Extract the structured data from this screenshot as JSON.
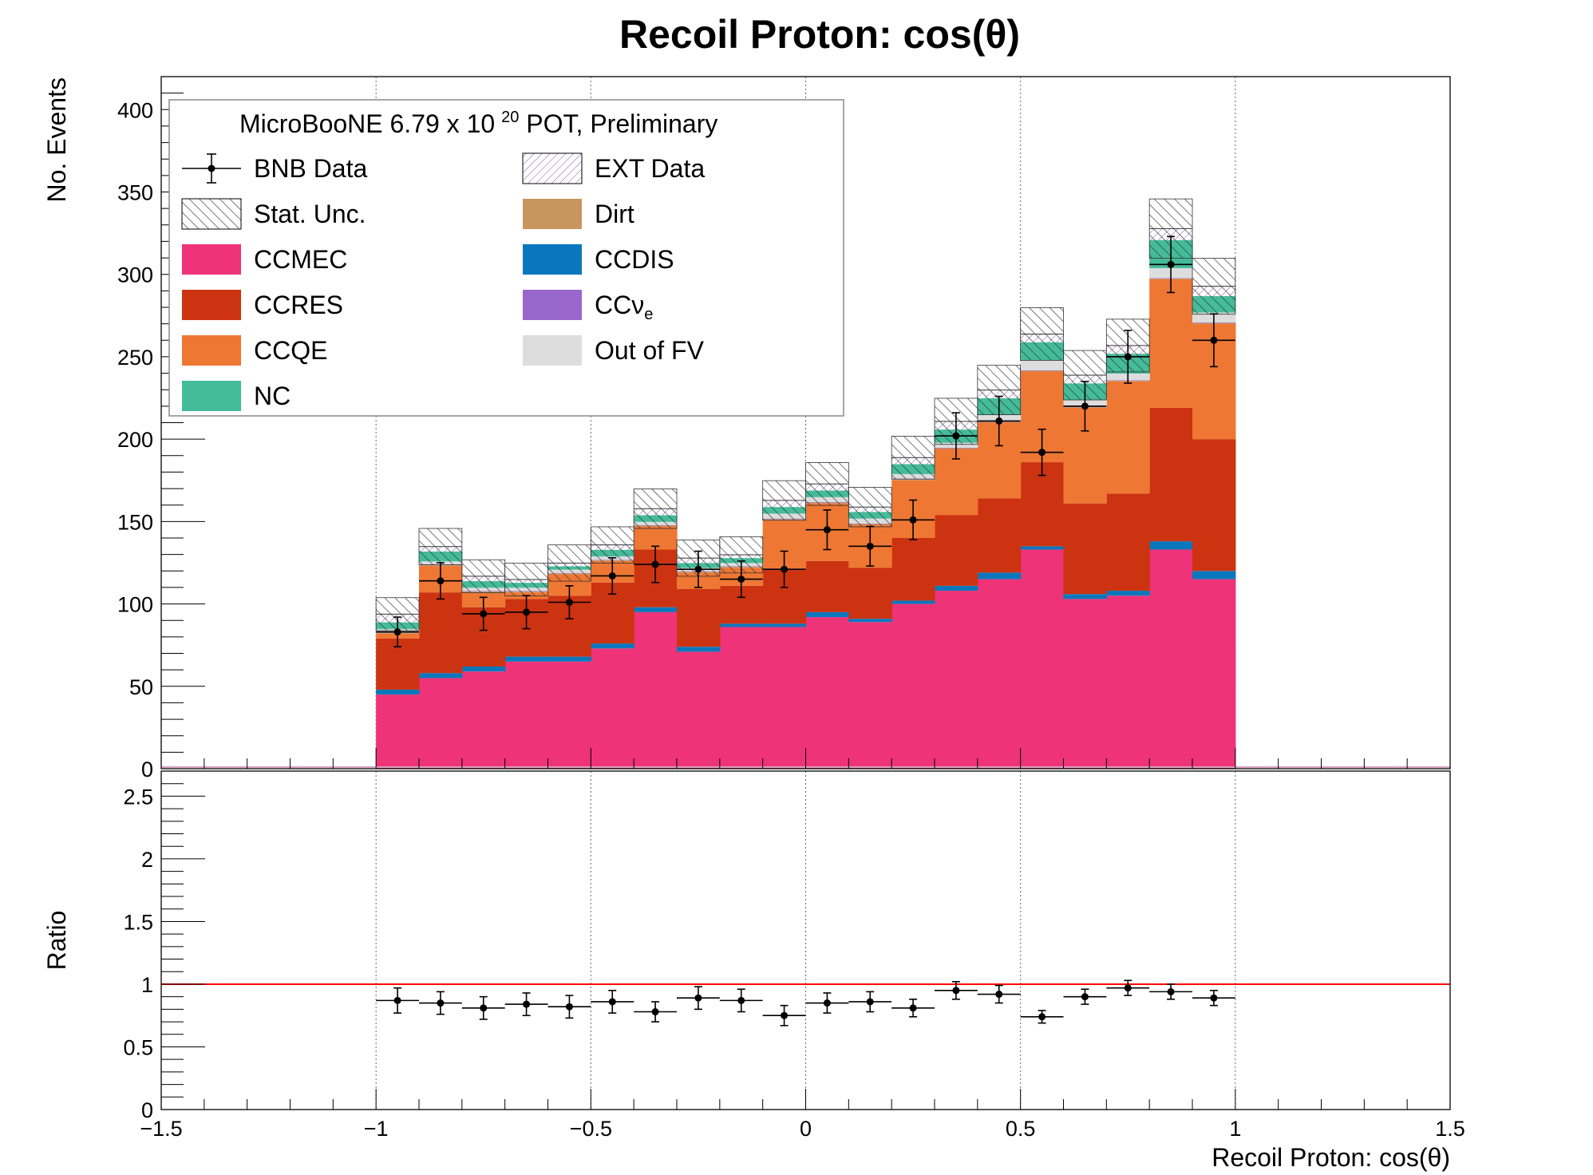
{
  "chart_data": {
    "type": "bar",
    "title": "Recoil Proton: cos(θ)",
    "xlabel": "Recoil Proton: cos(θ)",
    "ylabel": "No. Events",
    "ratio_ylabel": "Ratio",
    "xlim": [
      -1.5,
      1.5
    ],
    "ylim": [
      0,
      420
    ],
    "ratio_ylim": [
      0,
      2.7
    ],
    "x_ticks": [
      "−1.5",
      "−1",
      "−0.5",
      "0",
      "0.5",
      "1",
      "1.5"
    ],
    "y_ticks": [
      "0",
      "50",
      "100",
      "150",
      "200",
      "250",
      "300",
      "350",
      "400"
    ],
    "ratio_ticks": [
      "0",
      "0.5",
      "1",
      "1.5",
      "2",
      "2.5"
    ],
    "bin_edges": [
      -1.0,
      -0.9,
      -0.8,
      -0.7,
      -0.6,
      -0.5,
      -0.4,
      -0.3,
      -0.2,
      -0.1,
      0.0,
      0.1,
      0.2,
      0.3,
      0.4,
      0.5,
      0.6,
      0.7,
      0.8,
      0.9,
      1.0
    ],
    "legend": {
      "header_main": "MicroBooNE 6.79 x 10",
      "header_sup": "20",
      "header_tail": " POT, Preliminary",
      "entries": [
        {
          "label": "BNB Data",
          "kind": "data"
        },
        {
          "label": "EXT Data",
          "kind": "ext"
        },
        {
          "label": "Stat. Unc.",
          "kind": "unc"
        },
        {
          "label": "Dirt",
          "kind": "fill",
          "color": "#c8955f"
        },
        {
          "label": "CCMEC",
          "kind": "fill",
          "color": "#ee3378"
        },
        {
          "label": "CCDIS",
          "kind": "fill",
          "color": "#0a77bd"
        },
        {
          "label": "CCRES",
          "kind": "fill",
          "color": "#cc3311"
        },
        {
          "label": "CCν",
          "sub": "e",
          "kind": "fill",
          "color": "#9966cc"
        },
        {
          "label": "CCQE",
          "kind": "fill",
          "color": "#ee7733"
        },
        {
          "label": "Out of FV",
          "kind": "fill",
          "color": "#dddddd"
        },
        {
          "label": "NC",
          "kind": "fill",
          "color": "#44bb99"
        }
      ]
    },
    "series": [
      {
        "name": "CCMEC",
        "color": "#ee3378",
        "values": [
          45,
          55,
          59,
          65,
          65,
          73,
          95,
          71,
          86,
          86,
          92,
          89,
          100,
          108,
          115,
          133,
          103,
          105,
          133,
          115
        ]
      },
      {
        "name": "CCDIS",
        "color": "#0a77bd",
        "values": [
          3,
          3,
          3,
          3,
          3,
          3,
          3,
          3,
          2,
          2,
          3,
          2,
          2,
          3,
          4,
          2,
          3,
          3,
          5,
          5
        ]
      },
      {
        "name": "CCRES",
        "color": "#cc3311",
        "values": [
          31,
          49,
          36,
          35,
          37,
          37,
          35,
          35,
          23,
          33,
          31,
          31,
          38,
          43,
          45,
          51,
          55,
          59,
          81,
          80
        ]
      },
      {
        "name": "CCQE",
        "color": "#ee7733",
        "values": [
          3,
          16,
          9,
          4,
          13,
          13,
          14,
          10,
          11,
          30,
          35,
          26,
          35,
          40,
          46,
          55,
          58,
          68,
          78,
          70
        ]
      },
      {
        "name": "Dirt",
        "color": "#c8955f",
        "values": [
          0.5,
          0.5,
          0.5,
          0.5,
          0.5,
          0.5,
          0.5,
          0.5,
          0.5,
          0.5,
          0.5,
          0.5,
          0.5,
          0.5,
          0.5,
          0.5,
          0.5,
          0.5,
          0.5,
          0.5
        ]
      },
      {
        "name": "CCνe",
        "color": "#9966cc",
        "values": [
          0.3,
          0.3,
          0.3,
          0.3,
          0.3,
          0.3,
          0.3,
          0.3,
          0.3,
          0.3,
          0.3,
          0.3,
          0.3,
          0.3,
          0.3,
          0.3,
          0.3,
          0.3,
          0.3,
          0.3
        ]
      },
      {
        "name": "Out of FV",
        "color": "#dddddd",
        "values": [
          2,
          2,
          2,
          2,
          2,
          2,
          2,
          2,
          2,
          3,
          3,
          3,
          3,
          3,
          4,
          6,
          4,
          4,
          6,
          6
        ]
      },
      {
        "name": "NC",
        "color": "#44bb99",
        "values": [
          4,
          6,
          4,
          3,
          2,
          4,
          4,
          3,
          3,
          4,
          4,
          4,
          6,
          8,
          10,
          11,
          10,
          12,
          17,
          10
        ]
      },
      {
        "name": "EXT Data",
        "color": "#9966cc",
        "values": [
          5,
          3,
          3,
          2,
          2,
          3,
          4,
          3,
          2,
          4,
          4,
          3,
          4,
          5,
          5,
          5,
          5,
          5,
          7,
          6
        ]
      }
    ],
    "stat_unc": [
      10,
      11,
      10,
      10,
      11,
      11,
      12,
      11,
      11,
      12,
      13,
      12,
      13,
      14,
      15,
      16,
      15,
      16,
      18,
      17
    ],
    "data": {
      "name": "BNB Data",
      "values": [
        83,
        114,
        94,
        95,
        101,
        117,
        124,
        121,
        115,
        121,
        145,
        135,
        151,
        202,
        211,
        192,
        220,
        250,
        306,
        260
      ],
      "errors": [
        9,
        11,
        10,
        10,
        10,
        11,
        11,
        11,
        11,
        11,
        12,
        12,
        12,
        14,
        15,
        14,
        15,
        16,
        17,
        16
      ]
    },
    "ratio": {
      "values": [
        0.87,
        0.85,
        0.81,
        0.84,
        0.82,
        0.86,
        0.78,
        0.89,
        0.87,
        0.75,
        0.85,
        0.86,
        0.81,
        0.95,
        0.92,
        0.74,
        0.9,
        0.97,
        0.94,
        0.89
      ],
      "errors": [
        0.1,
        0.09,
        0.09,
        0.09,
        0.09,
        0.09,
        0.08,
        0.09,
        0.09,
        0.08,
        0.08,
        0.08,
        0.07,
        0.07,
        0.07,
        0.05,
        0.06,
        0.06,
        0.06,
        0.06
      ],
      "reference": 1
    }
  }
}
